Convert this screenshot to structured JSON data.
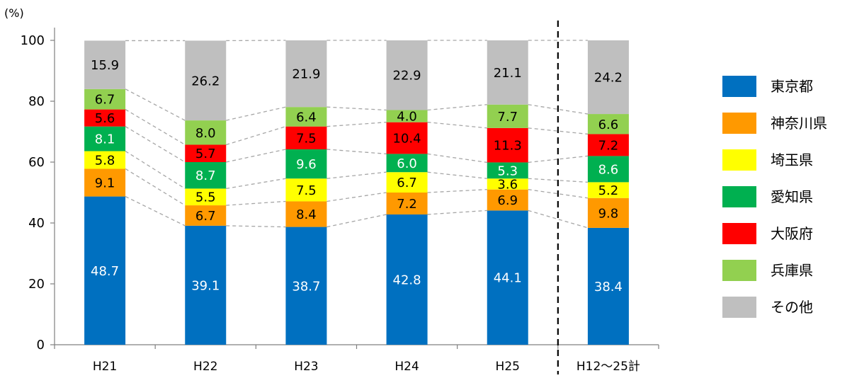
{
  "chart_data": {
    "type": "bar",
    "stacked": true,
    "ylabel": "(%)",
    "ylim": [
      0,
      100
    ],
    "yticks": [
      0,
      20,
      40,
      60,
      80,
      100
    ],
    "categories": [
      "H21",
      "H22",
      "H23",
      "H24",
      "H25",
      "H12～25計"
    ],
    "series": [
      {
        "name": "東京都",
        "color": "#0070C0",
        "label_color": "#ffffff",
        "values": [
          48.7,
          39.1,
          38.7,
          42.8,
          44.1,
          38.4
        ]
      },
      {
        "name": "神奈川県",
        "color": "#FF9900",
        "label_color": "#000000",
        "values": [
          9.1,
          6.7,
          8.4,
          7.2,
          6.9,
          9.8
        ]
      },
      {
        "name": "埼玉県",
        "color": "#FFFF00",
        "label_color": "#000000",
        "values": [
          5.8,
          5.5,
          7.5,
          6.7,
          3.6,
          5.2
        ]
      },
      {
        "name": "愛知県",
        "color": "#00B050",
        "label_color": "#ffffff",
        "values": [
          8.1,
          8.7,
          9.6,
          6.0,
          5.3,
          8.6
        ]
      },
      {
        "name": "大阪府",
        "color": "#FF0000",
        "label_color": "#000000",
        "values": [
          5.6,
          5.7,
          7.5,
          10.4,
          11.3,
          7.2
        ]
      },
      {
        "name": "兵庫県",
        "color": "#92D050",
        "label_color": "#000000",
        "values": [
          6.7,
          8.0,
          6.4,
          4.0,
          7.7,
          6.6
        ]
      },
      {
        "name": "その他",
        "color": "#BFBFBF",
        "label_color": "#000000",
        "values": [
          15.9,
          26.2,
          21.9,
          22.9,
          21.1,
          24.2
        ]
      }
    ],
    "separator_before_category": "H12～25計",
    "legend_position": "right",
    "grid": false
  }
}
